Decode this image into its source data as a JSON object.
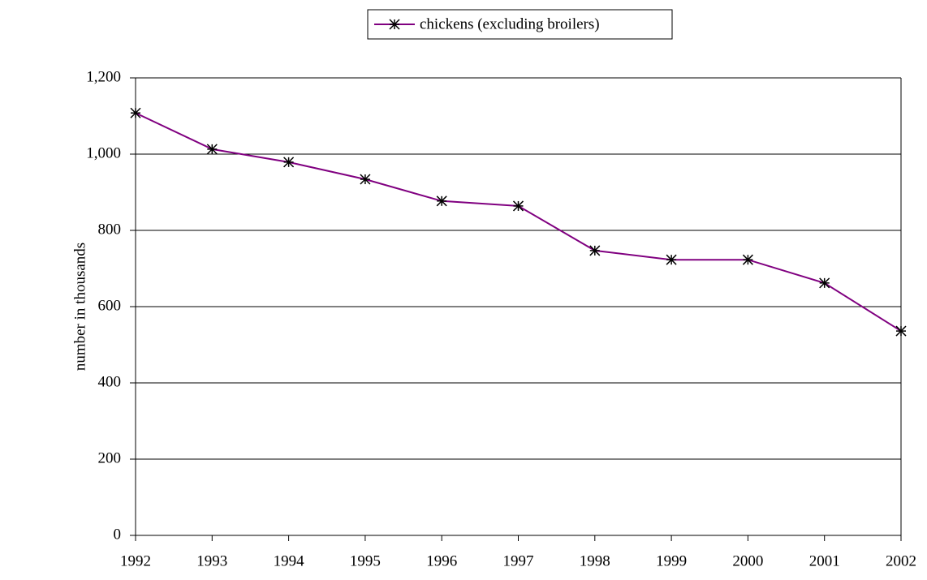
{
  "chart_data": {
    "type": "line",
    "y_label": "number in thousands",
    "categories": [
      "1992",
      "1993",
      "1994",
      "1995",
      "1996",
      "1997",
      "1998",
      "1999",
      "2000",
      "2001",
      "2002"
    ],
    "series": [
      {
        "name": "chickens (excluding broilers)",
        "color": "#800080",
        "values": [
          1108,
          1013,
          979,
          934,
          877,
          864,
          747,
          723,
          723,
          662,
          536
        ]
      }
    ],
    "ylim": [
      0,
      1200
    ],
    "yticks": [
      0,
      200,
      400,
      600,
      800,
      {
        "value": 1000,
        "label": "1,000"
      },
      {
        "value": 1200,
        "label": "1,200"
      }
    ],
    "grid": true,
    "legend": "top"
  }
}
